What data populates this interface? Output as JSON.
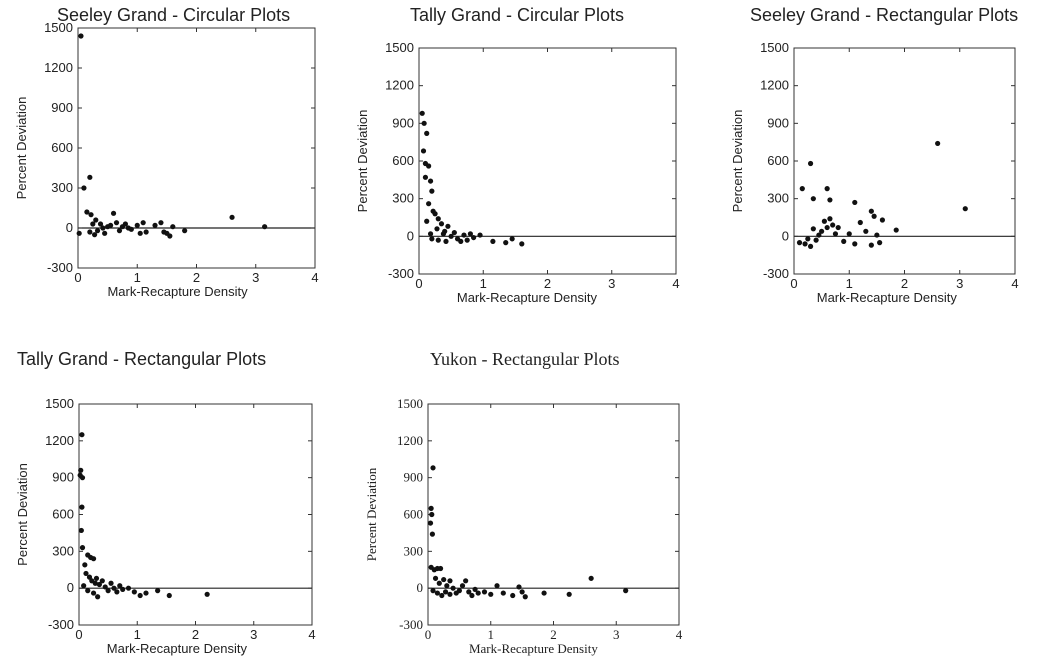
{
  "chart_data": [
    {
      "type": "scatter",
      "title": "Seeley Grand - Circular Plots",
      "xlabel": "Mark-Recapture Density",
      "ylabel": "Percent Deviation",
      "xlim": [
        0,
        4
      ],
      "ylim": [
        -300,
        1500
      ],
      "xticks": [
        0,
        1,
        2,
        3,
        4
      ],
      "yticks": [
        -300,
        0,
        300,
        600,
        900,
        1200,
        1500
      ],
      "reference_line_y": 0,
      "grid": false,
      "points": [
        [
          0.05,
          1440
        ],
        [
          0.02,
          -40
        ],
        [
          0.1,
          300
        ],
        [
          0.2,
          380
        ],
        [
          0.15,
          120
        ],
        [
          0.22,
          100
        ],
        [
          0.25,
          30
        ],
        [
          0.3,
          60
        ],
        [
          0.2,
          -30
        ],
        [
          0.28,
          -50
        ],
        [
          0.33,
          -20
        ],
        [
          0.38,
          30
        ],
        [
          0.42,
          0
        ],
        [
          0.45,
          -40
        ],
        [
          0.5,
          10
        ],
        [
          0.55,
          20
        ],
        [
          0.6,
          110
        ],
        [
          0.65,
          40
        ],
        [
          0.7,
          -20
        ],
        [
          0.75,
          10
        ],
        [
          0.8,
          30
        ],
        [
          0.85,
          0
        ],
        [
          0.9,
          -10
        ],
        [
          1.0,
          20
        ],
        [
          1.05,
          -40
        ],
        [
          1.1,
          40
        ],
        [
          1.15,
          -30
        ],
        [
          1.3,
          20
        ],
        [
          1.4,
          40
        ],
        [
          1.45,
          -30
        ],
        [
          1.5,
          -40
        ],
        [
          1.55,
          -60
        ],
        [
          1.6,
          10
        ],
        [
          1.8,
          -20
        ],
        [
          2.6,
          80
        ],
        [
          3.15,
          10
        ]
      ]
    },
    {
      "type": "scatter",
      "title": "Tally Grand - Circular Plots",
      "xlabel": "Mark-Recapture Density",
      "ylabel": "Percent Deviation",
      "xlim": [
        0,
        4
      ],
      "ylim": [
        -300,
        1500
      ],
      "xticks": [
        0,
        1,
        2,
        3,
        4
      ],
      "yticks": [
        -300,
        0,
        300,
        600,
        900,
        1200,
        1500
      ],
      "reference_line_y": 0,
      "grid": false,
      "points": [
        [
          0.05,
          980
        ],
        [
          0.08,
          900
        ],
        [
          0.12,
          820
        ],
        [
          0.07,
          680
        ],
        [
          0.1,
          580
        ],
        [
          0.15,
          560
        ],
        [
          0.1,
          470
        ],
        [
          0.18,
          440
        ],
        [
          0.2,
          360
        ],
        [
          0.15,
          260
        ],
        [
          0.22,
          200
        ],
        [
          0.25,
          180
        ],
        [
          0.12,
          120
        ],
        [
          0.3,
          140
        ],
        [
          0.35,
          100
        ],
        [
          0.28,
          60
        ],
        [
          0.4,
          40
        ],
        [
          0.45,
          80
        ],
        [
          0.18,
          20
        ],
        [
          0.2,
          -20
        ],
        [
          0.3,
          -30
        ],
        [
          0.38,
          20
        ],
        [
          0.42,
          -40
        ],
        [
          0.5,
          0
        ],
        [
          0.55,
          30
        ],
        [
          0.6,
          -20
        ],
        [
          0.65,
          -40
        ],
        [
          0.7,
          10
        ],
        [
          0.75,
          -30
        ],
        [
          0.8,
          20
        ],
        [
          0.85,
          -10
        ],
        [
          0.95,
          10
        ],
        [
          1.15,
          -40
        ],
        [
          1.35,
          -50
        ],
        [
          1.45,
          -20
        ],
        [
          1.6,
          -60
        ]
      ]
    },
    {
      "type": "scatter",
      "title": "Seeley Grand - Rectangular Plots",
      "xlabel": "Mark-Recapture Density",
      "ylabel": "Percent Deviation",
      "xlim": [
        0,
        4
      ],
      "ylim": [
        -300,
        1500
      ],
      "xticks": [
        0,
        1,
        2,
        3,
        4
      ],
      "yticks": [
        -300,
        0,
        300,
        600,
        900,
        1200,
        1500
      ],
      "reference_line_y": 0,
      "grid": false,
      "points": [
        [
          0.1,
          -50
        ],
        [
          0.15,
          380
        ],
        [
          0.2,
          -60
        ],
        [
          0.25,
          -20
        ],
        [
          0.3,
          580
        ],
        [
          0.3,
          -80
        ],
        [
          0.35,
          60
        ],
        [
          0.35,
          300
        ],
        [
          0.4,
          -30
        ],
        [
          0.45,
          10
        ],
        [
          0.5,
          40
        ],
        [
          0.55,
          120
        ],
        [
          0.6,
          70
        ],
        [
          0.6,
          380
        ],
        [
          0.65,
          140
        ],
        [
          0.65,
          290
        ],
        [
          0.7,
          90
        ],
        [
          0.75,
          20
        ],
        [
          0.8,
          70
        ],
        [
          0.9,
          -40
        ],
        [
          1.0,
          20
        ],
        [
          1.1,
          270
        ],
        [
          1.1,
          -60
        ],
        [
          1.2,
          110
        ],
        [
          1.3,
          40
        ],
        [
          1.4,
          200
        ],
        [
          1.4,
          -70
        ],
        [
          1.45,
          160
        ],
        [
          1.5,
          10
        ],
        [
          1.55,
          -50
        ],
        [
          1.6,
          130
        ],
        [
          1.85,
          50
        ],
        [
          2.6,
          740
        ],
        [
          3.1,
          220
        ]
      ]
    },
    {
      "type": "scatter",
      "title": "Tally Grand - Rectangular Plots",
      "xlabel": "Mark-Recapture Density",
      "ylabel": "Percent Deviation",
      "xlim": [
        0,
        4
      ],
      "ylim": [
        -300,
        1500
      ],
      "xticks": [
        0,
        1,
        2,
        3,
        4
      ],
      "yticks": [
        -300,
        0,
        300,
        600,
        900,
        1200,
        1500
      ],
      "reference_line_y": 0,
      "grid": false,
      "points": [
        [
          0.05,
          1250
        ],
        [
          0.03,
          960
        ],
        [
          0.02,
          920
        ],
        [
          0.06,
          900
        ],
        [
          0.05,
          660
        ],
        [
          0.04,
          470
        ],
        [
          0.06,
          330
        ],
        [
          0.1,
          190
        ],
        [
          0.15,
          270
        ],
        [
          0.2,
          250
        ],
        [
          0.25,
          240
        ],
        [
          0.12,
          120
        ],
        [
          0.18,
          90
        ],
        [
          0.22,
          60
        ],
        [
          0.28,
          40
        ],
        [
          0.3,
          80
        ],
        [
          0.35,
          30
        ],
        [
          0.4,
          60
        ],
        [
          0.08,
          20
        ],
        [
          0.15,
          -20
        ],
        [
          0.25,
          -40
        ],
        [
          0.32,
          -70
        ],
        [
          0.45,
          10
        ],
        [
          0.5,
          -20
        ],
        [
          0.55,
          40
        ],
        [
          0.6,
          0
        ],
        [
          0.65,
          -30
        ],
        [
          0.7,
          20
        ],
        [
          0.75,
          -10
        ],
        [
          0.85,
          0
        ],
        [
          0.95,
          -30
        ],
        [
          1.05,
          -60
        ],
        [
          1.15,
          -40
        ],
        [
          1.35,
          -20
        ],
        [
          1.55,
          -60
        ],
        [
          2.2,
          -50
        ]
      ]
    },
    {
      "type": "scatter",
      "title": "Yukon - Rectangular Plots",
      "xlabel": "Mark-Recapture Density",
      "ylabel": "Percent Deviation",
      "xlim": [
        0,
        4
      ],
      "ylim": [
        -300,
        1500
      ],
      "xticks": [
        0,
        1,
        2,
        3,
        4
      ],
      "yticks": [
        -300,
        0,
        300,
        600,
        900,
        1200,
        1500
      ],
      "reference_line_y": 0,
      "grid": false,
      "points": [
        [
          0.08,
          980
        ],
        [
          0.05,
          650
        ],
        [
          0.06,
          600
        ],
        [
          0.04,
          530
        ],
        [
          0.07,
          440
        ],
        [
          0.05,
          170
        ],
        [
          0.1,
          150
        ],
        [
          0.15,
          160
        ],
        [
          0.2,
          160
        ],
        [
          0.12,
          80
        ],
        [
          0.18,
          40
        ],
        [
          0.25,
          70
        ],
        [
          0.3,
          20
        ],
        [
          0.35,
          60
        ],
        [
          0.08,
          -20
        ],
        [
          0.15,
          -40
        ],
        [
          0.22,
          -60
        ],
        [
          0.28,
          -30
        ],
        [
          0.35,
          -50
        ],
        [
          0.4,
          0
        ],
        [
          0.45,
          -40
        ],
        [
          0.5,
          -20
        ],
        [
          0.55,
          20
        ],
        [
          0.6,
          60
        ],
        [
          0.65,
          -30
        ],
        [
          0.7,
          -60
        ],
        [
          0.75,
          -10
        ],
        [
          0.8,
          -40
        ],
        [
          0.9,
          -30
        ],
        [
          1.0,
          -50
        ],
        [
          1.1,
          20
        ],
        [
          1.2,
          -40
        ],
        [
          1.35,
          -60
        ],
        [
          1.45,
          10
        ],
        [
          1.5,
          -30
        ],
        [
          1.55,
          -70
        ],
        [
          1.85,
          -40
        ],
        [
          2.25,
          -50
        ],
        [
          2.6,
          80
        ],
        [
          3.15,
          -20
        ]
      ]
    }
  ]
}
